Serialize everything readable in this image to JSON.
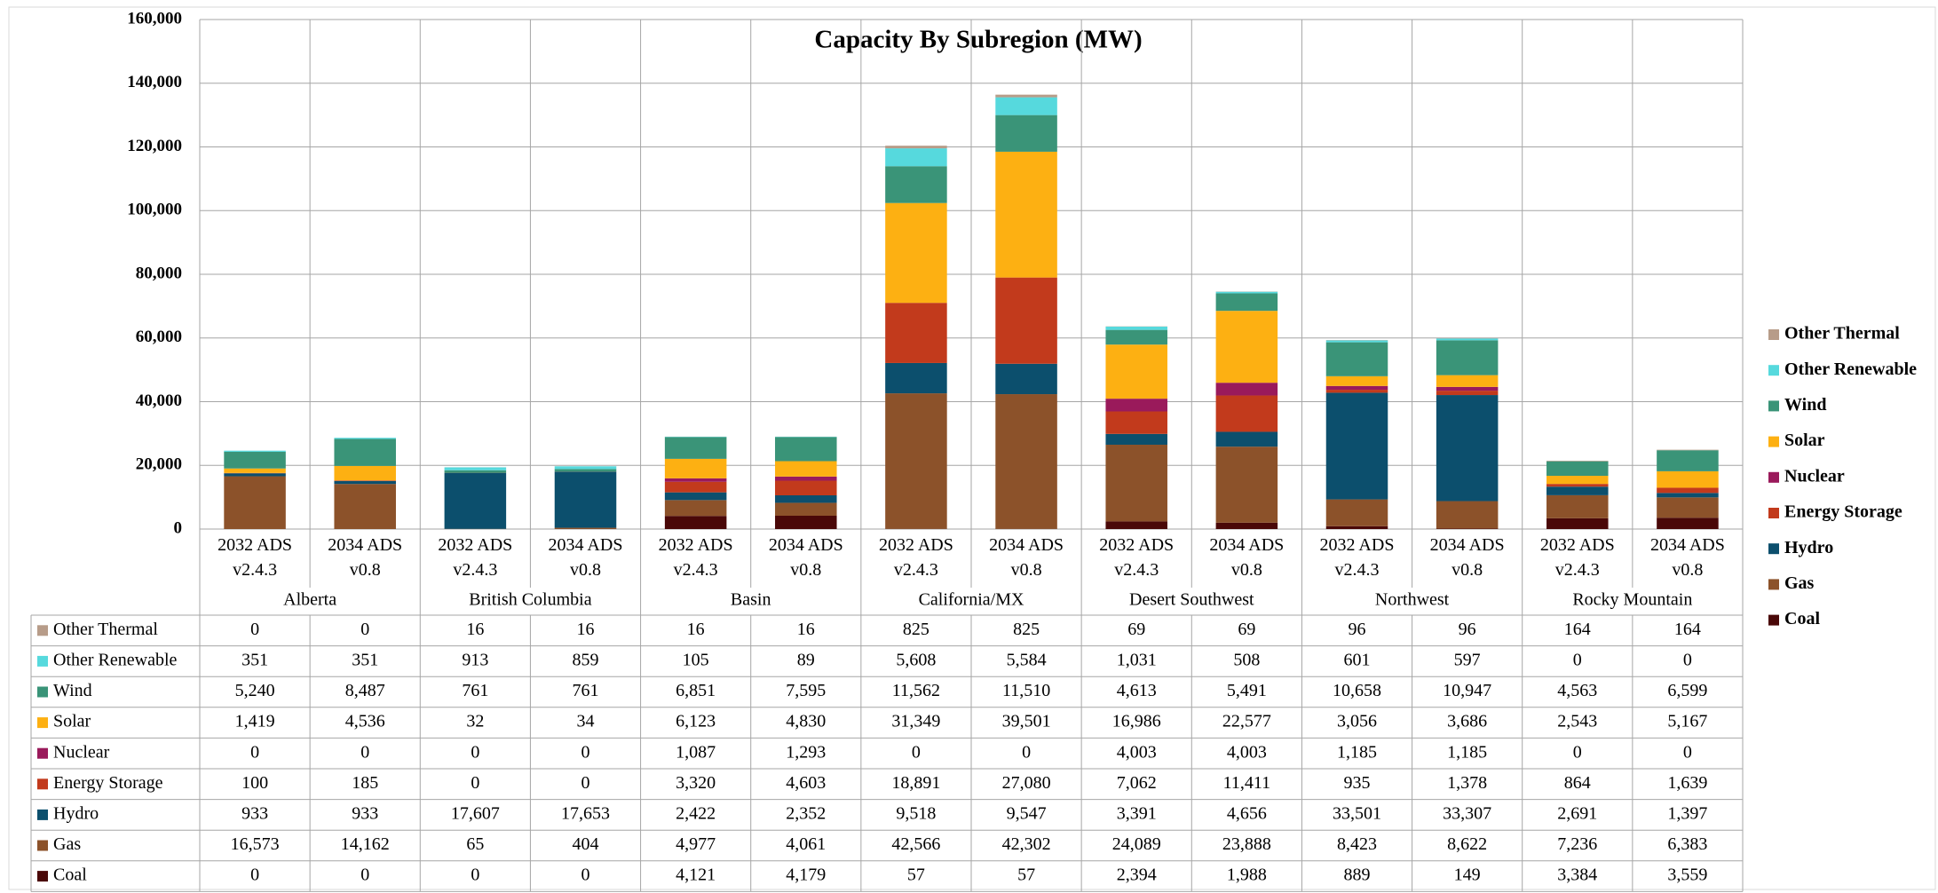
{
  "chart_data": {
    "type": "stacked_bar",
    "title": "Capacity By Subregion (MW)",
    "categories": [
      "2032 ADS v2.4.3",
      "2034 ADS v0.8",
      "2032 ADS v2.4.3",
      "2034 ADS v0.8",
      "2032 ADS v2.4.3",
      "2034 ADS v0.8",
      "2032 ADS v2.4.3",
      "2034 ADS v0.8",
      "2032 ADS v2.4.3",
      "2034 ADS v0.8",
      "2032 ADS v2.4.3",
      "2034 ADS v0.8",
      "2032 ADS v2.4.3",
      "2034 ADS v0.8"
    ],
    "groups": [
      "Alberta",
      "British Columbia",
      "Basin",
      "California/MX",
      "Desert Southwest",
      "Northwest",
      "Rocky Mountain"
    ],
    "ylim": [
      0,
      160000
    ],
    "yticks": [
      0,
      {
        "value": 20000,
        "label": "20,000"
      },
      {
        "value": 40000,
        "label": "40,000"
      },
      {
        "value": 60000,
        "label": "60,000"
      },
      {
        "value": 80000,
        "label": "80,000"
      },
      {
        "value": 100000,
        "label": "100,000"
      },
      {
        "value": 120000,
        "label": "120,000"
      },
      {
        "value": 140000,
        "label": "140,000"
      },
      {
        "value": 160000,
        "label": "160,000"
      }
    ],
    "grid": true,
    "legend": "right",
    "series": [
      {
        "name": "Coal",
        "color": "#4a0808",
        "values": [
          0,
          0,
          0,
          0,
          4121,
          4179,
          57,
          57,
          2394,
          1988,
          889,
          149,
          3384,
          3559
        ],
        "value_labels": [
          "0",
          "0",
          "0",
          "0",
          "4,121",
          "4,179",
          "57",
          "57",
          "2,394",
          "1,988",
          "889",
          "149",
          "3,384",
          "3,559"
        ]
      },
      {
        "name": "Gas",
        "color": "#8c522a",
        "values": [
          16573,
          14162,
          65,
          404,
          4977,
          4061,
          42566,
          42302,
          24089,
          23888,
          8423,
          8622,
          7236,
          6383
        ],
        "value_labels": [
          "16,573",
          "14,162",
          "65",
          "404",
          "4,977",
          "4,061",
          "42,566",
          "42,302",
          "24,089",
          "23,888",
          "8,423",
          "8,622",
          "7,236",
          "6,383"
        ]
      },
      {
        "name": "Hydro",
        "color": "#0c4f6d",
        "values": [
          933,
          933,
          17607,
          17653,
          2422,
          2352,
          9518,
          9547,
          3391,
          4656,
          33501,
          33307,
          2691,
          1397
        ],
        "value_labels": [
          "933",
          "933",
          "17,607",
          "17,653",
          "2,422",
          "2,352",
          "9,518",
          "9,547",
          "3,391",
          "4,656",
          "33,501",
          "33,307",
          "2,691",
          "1,397"
        ]
      },
      {
        "name": "Energy Storage",
        "color": "#c23a1c",
        "values": [
          100,
          185,
          0,
          0,
          3320,
          4603,
          18891,
          27080,
          7062,
          11411,
          935,
          1378,
          864,
          1639
        ],
        "value_labels": [
          "100",
          "185",
          "0",
          "0",
          "3,320",
          "4,603",
          "18,891",
          "27,080",
          "7,062",
          "11,411",
          "935",
          "1,378",
          "864",
          "1,639"
        ]
      },
      {
        "name": "Nuclear",
        "color": "#9a1a5b",
        "values": [
          0,
          0,
          0,
          0,
          1087,
          1293,
          0,
          0,
          4003,
          4003,
          1185,
          1185,
          0,
          0
        ],
        "value_labels": [
          "0",
          "0",
          "0",
          "0",
          "1,087",
          "1,293",
          "0",
          "0",
          "4,003",
          "4,003",
          "1,185",
          "1,185",
          "0",
          "0"
        ]
      },
      {
        "name": "Solar",
        "color": "#fdb012",
        "values": [
          1419,
          4536,
          32,
          34,
          6123,
          4830,
          31349,
          39501,
          16986,
          22577,
          3056,
          3686,
          2543,
          5167
        ],
        "value_labels": [
          "1,419",
          "4,536",
          "32",
          "34",
          "6,123",
          "4,830",
          "31,349",
          "39,501",
          "16,986",
          "22,577",
          "3,056",
          "3,686",
          "2,543",
          "5,167"
        ]
      },
      {
        "name": "Wind",
        "color": "#3a9478",
        "values": [
          5240,
          8487,
          761,
          761,
          6851,
          7595,
          11562,
          11510,
          4613,
          5491,
          10658,
          10947,
          4563,
          6599
        ],
        "value_labels": [
          "5,240",
          "8,487",
          "761",
          "761",
          "6,851",
          "7,595",
          "11,562",
          "11,510",
          "4,613",
          "5,491",
          "10,658",
          "10,947",
          "4,563",
          "6,599"
        ]
      },
      {
        "name": "Other Renewable",
        "color": "#56d9dd",
        "values": [
          351,
          351,
          913,
          859,
          105,
          89,
          5608,
          5584,
          1031,
          508,
          601,
          597,
          0,
          0
        ],
        "value_labels": [
          "351",
          "351",
          "913",
          "859",
          "105",
          "89",
          "5,608",
          "5,584",
          "1,031",
          "508",
          "601",
          "597",
          "0",
          "0"
        ]
      },
      {
        "name": "Other Thermal",
        "color": "#b79c89",
        "values": [
          0,
          0,
          16,
          16,
          16,
          16,
          825,
          825,
          69,
          69,
          96,
          96,
          164,
          164
        ]
      }
    ]
  }
}
